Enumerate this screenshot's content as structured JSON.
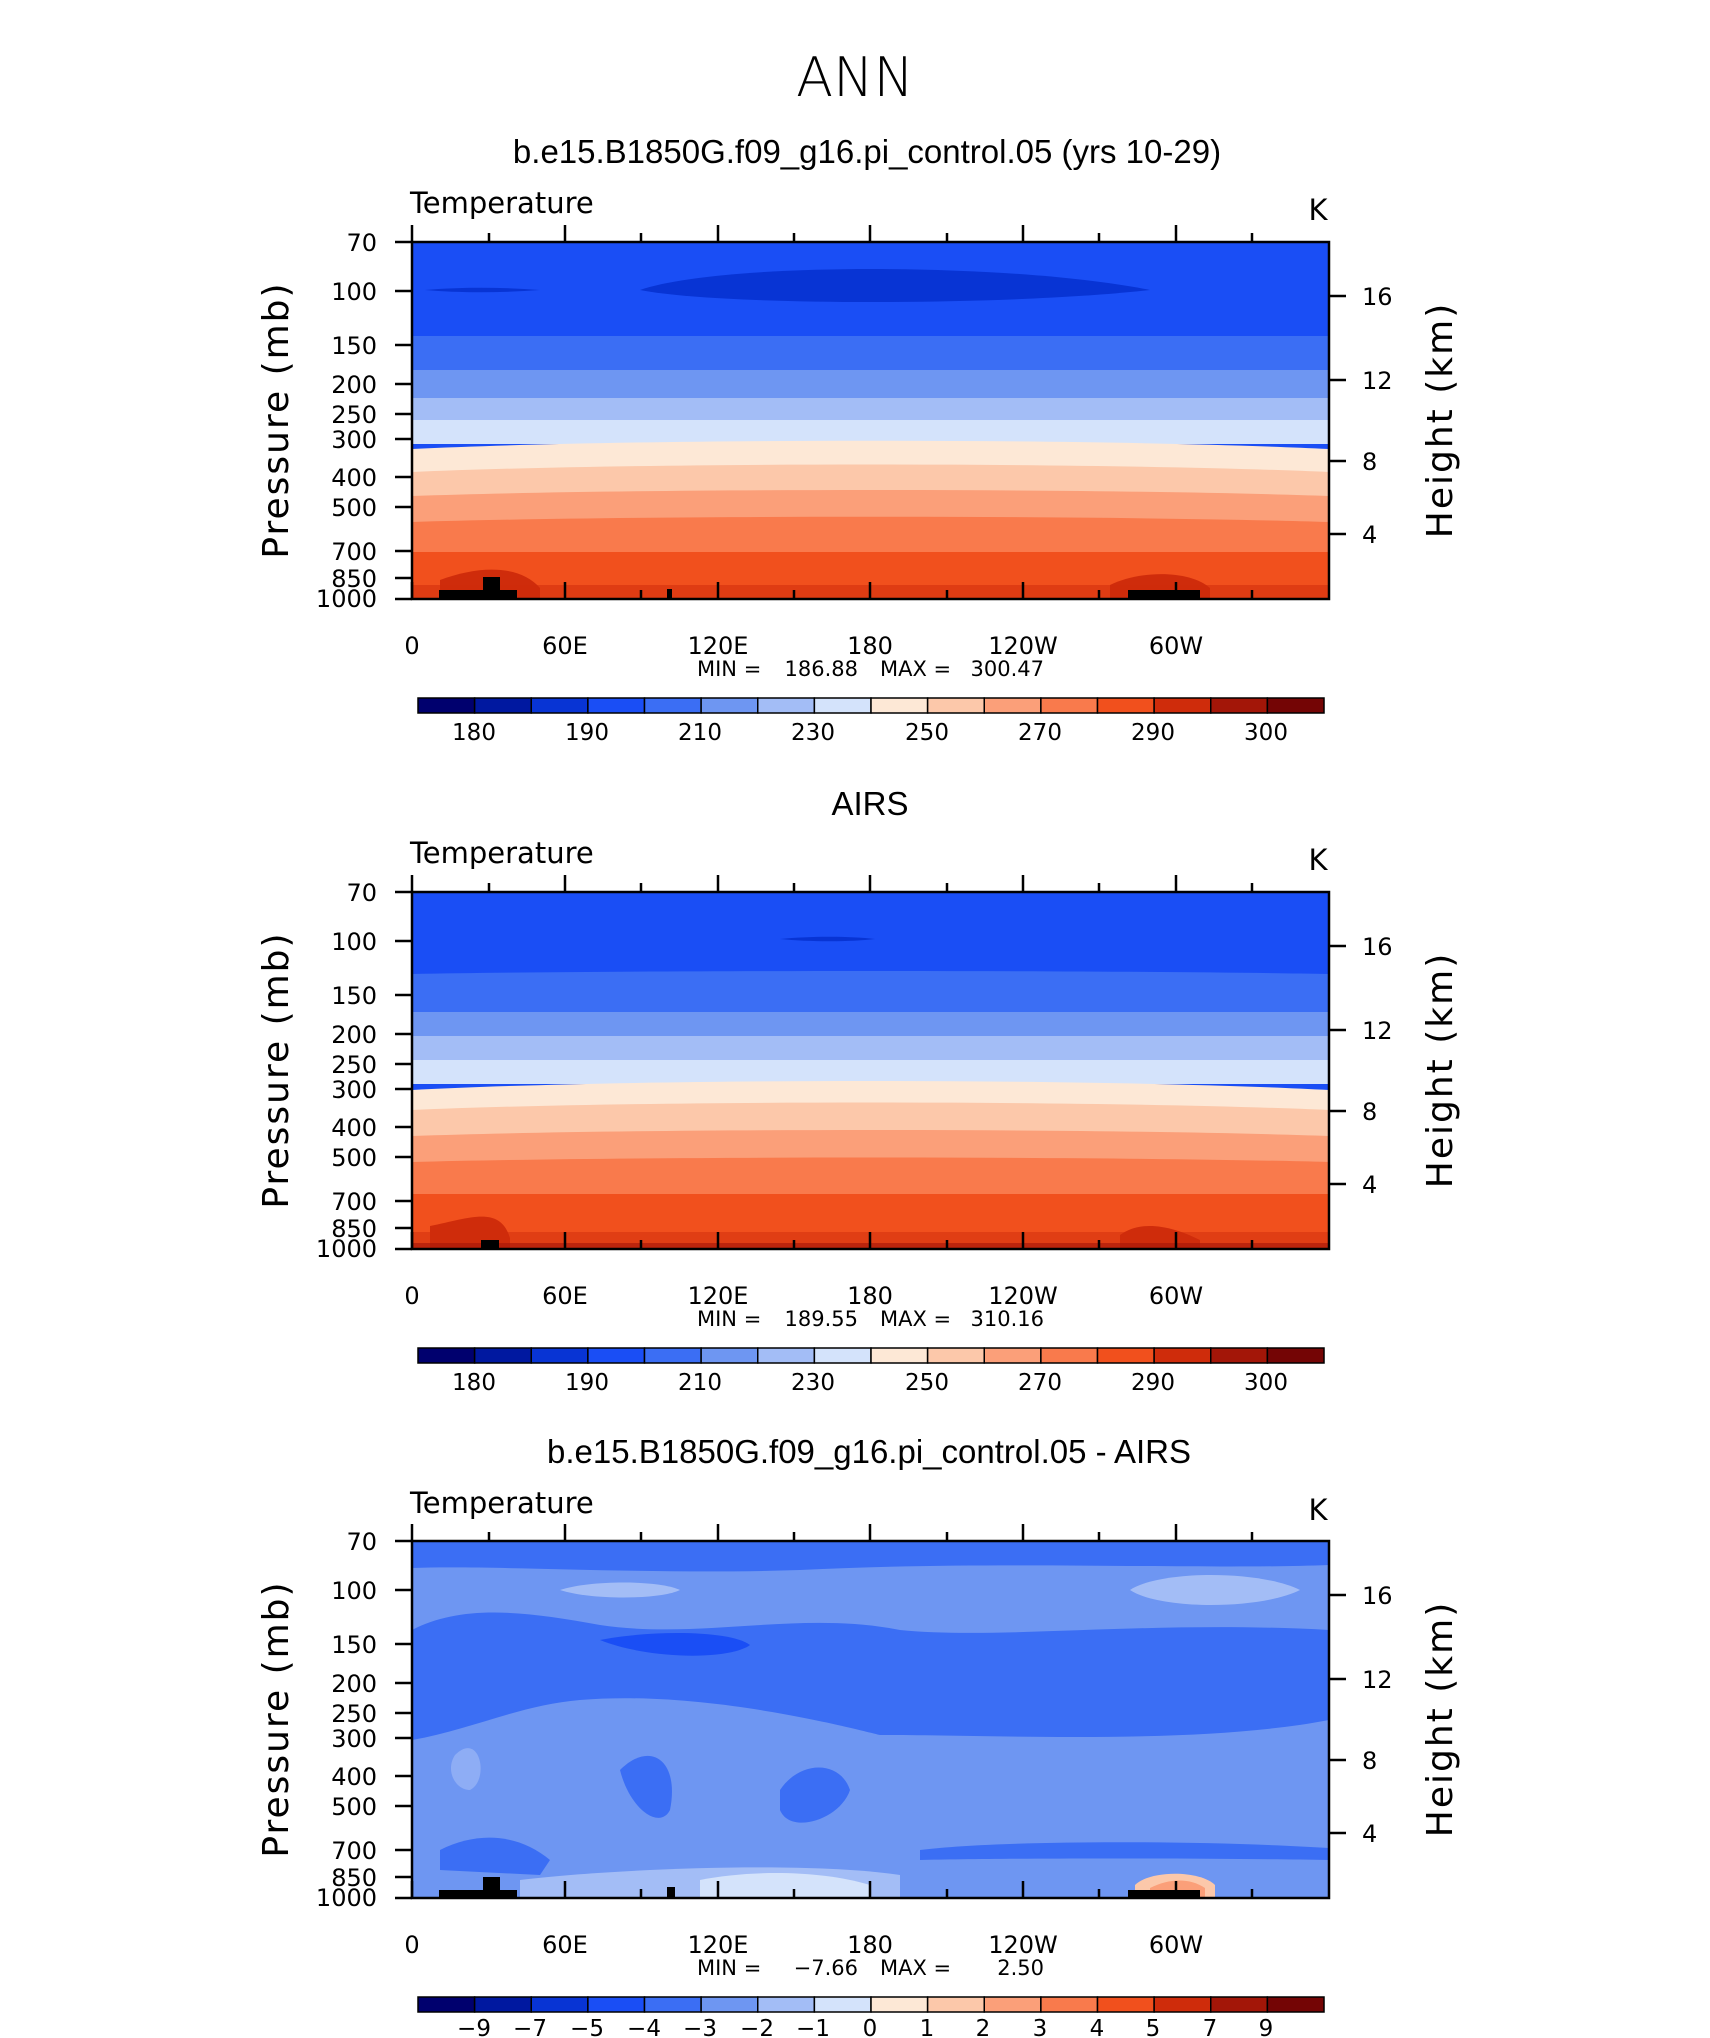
{
  "figure_title": "ANN",
  "chart_data": [
    {
      "type": "contour",
      "title": "b.e15.B1850G.f09_g16.pi_control.05 (yrs 10-29)",
      "variable": "Temperature",
      "units": "K",
      "ylabel": "Pressure (mb)",
      "y2label": "Height (km)",
      "xticks": [
        "0",
        "60E",
        "120E",
        "180",
        "120W",
        "60W"
      ],
      "yticks": [
        "70",
        "100",
        "150",
        "200",
        "250",
        "300",
        "400",
        "500",
        "700",
        "850",
        "1000"
      ],
      "y2ticks": [
        "16",
        "12",
        "8",
        "4"
      ],
      "xlim": [
        0,
        360
      ],
      "ylim": [
        1000,
        70
      ],
      "min_label": "MIN =",
      "min": "186.88",
      "max_label": "MAX =",
      "max": "300.47",
      "levels_shown": [
        190,
        195,
        200,
        210,
        220,
        230,
        240,
        250,
        260,
        270,
        280,
        290,
        295
      ],
      "colorbar_labels": [
        "180",
        "190",
        "210",
        "230",
        "250",
        "270",
        "290",
        "300"
      ]
    },
    {
      "type": "contour",
      "title": "AIRS",
      "variable": "Temperature",
      "units": "K",
      "ylabel": "Pressure (mb)",
      "y2label": "Height (km)",
      "xticks": [
        "0",
        "60E",
        "120E",
        "180",
        "120W",
        "60W"
      ],
      "yticks": [
        "70",
        "100",
        "150",
        "200",
        "250",
        "300",
        "400",
        "500",
        "700",
        "850",
        "1000"
      ],
      "y2ticks": [
        "16",
        "12",
        "8",
        "4"
      ],
      "xlim": [
        0,
        360
      ],
      "ylim": [
        1000,
        70
      ],
      "min_label": "MIN =",
      "min": "189.55",
      "max_label": "MAX =",
      "max": "310.16",
      "levels_shown": [
        195,
        200,
        210,
        220,
        230,
        240,
        250,
        260,
        270,
        280,
        290,
        295
      ],
      "colorbar_labels": [
        "180",
        "190",
        "210",
        "230",
        "250",
        "270",
        "290",
        "300"
      ]
    },
    {
      "type": "contour",
      "title": "b.e15.B1850G.f09_g16.pi_control.05 - AIRS",
      "variable": "Temperature",
      "units": "K",
      "ylabel": "Pressure (mb)",
      "y2label": "Height (km)",
      "xticks": [
        "0",
        "60E",
        "120E",
        "180",
        "120W",
        "60W"
      ],
      "yticks": [
        "70",
        "100",
        "150",
        "200",
        "250",
        "300",
        "400",
        "500",
        "700",
        "850",
        "1000"
      ],
      "y2ticks": [
        "16",
        "12",
        "8",
        "4"
      ],
      "xlim": [
        0,
        360
      ],
      "ylim": [
        1000,
        70
      ],
      "min_label": "MIN =",
      "min": "−7.66",
      "max_label": "MAX =",
      "max": "2.50",
      "colorbar_labels": [
        "−9",
        "−7",
        "−5",
        "−4",
        "−3",
        "−2",
        "−1",
        "0",
        "1",
        "2",
        "3",
        "4",
        "5",
        "7",
        "9"
      ]
    }
  ],
  "colors": {
    "colorbar": [
      "#00006e",
      "#0018a0",
      "#0834d4",
      "#1a4ef5",
      "#3b6ef4",
      "#6e96f2",
      "#a3bdf6",
      "#d4e3fb",
      "#fde8d6",
      "#fcc8aa",
      "#fb9f79",
      "#f97a4c",
      "#f1501d",
      "#cf2c0b",
      "#a31608",
      "#740505"
    ],
    "terrain": "#000000"
  }
}
